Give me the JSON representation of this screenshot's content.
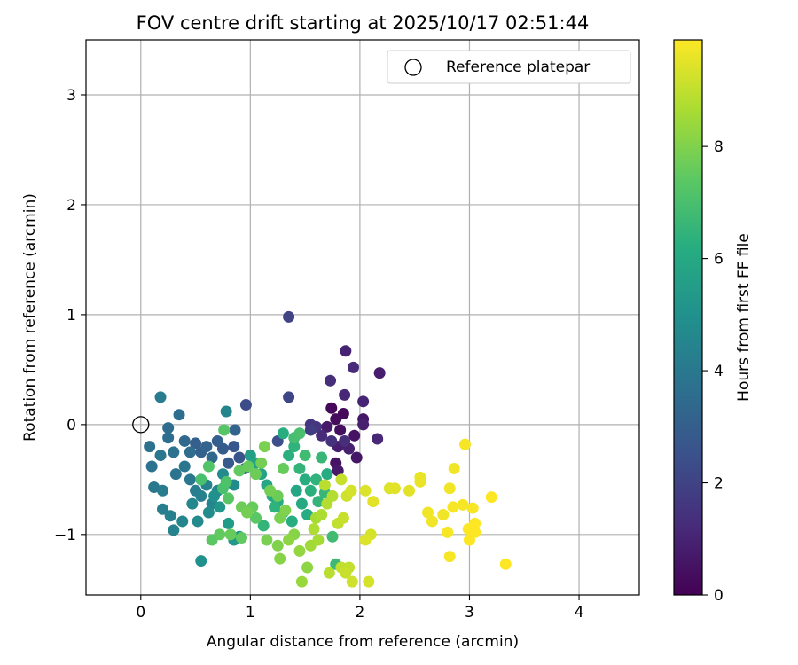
{
  "chart_data": {
    "type": "scatter",
    "title": "FOV centre drift starting at 2025/10/17 02:51:44",
    "xlabel": "Angular distance from reference (arcmin)",
    "ylabel": "Rotation from reference (arcmin)",
    "xlim": [
      -0.5,
      4.55
    ],
    "ylim": [
      -1.55,
      3.5
    ],
    "xticks": [
      0,
      1,
      2,
      3,
      4
    ],
    "xtick_labels": [
      "0",
      "1",
      "2",
      "3",
      "4"
    ],
    "yticks": [
      -1,
      0,
      1,
      2,
      3
    ],
    "ytick_labels": [
      "−1",
      "0",
      "1",
      "2",
      "3"
    ],
    "grid": true,
    "legend": {
      "label": "Reference platepar",
      "position": "top-right"
    },
    "reference_point": {
      "x": 0,
      "y": 0
    },
    "colorbar": {
      "label": "Hours from first FF file",
      "range": [
        0,
        9.9
      ],
      "ticks": [
        0,
        2,
        4,
        6,
        8
      ],
      "tick_labels": [
        "0",
        "2",
        "4",
        "6",
        "8"
      ],
      "colormap": "viridis"
    },
    "points": [
      {
        "x": 1.74,
        "y": 0.15,
        "h": 0.2
      },
      {
        "x": 1.78,
        "y": 0.05,
        "h": 0.3
      },
      {
        "x": 1.82,
        "y": -0.05,
        "h": 0.4
      },
      {
        "x": 1.85,
        "y": 0.1,
        "h": 0.2
      },
      {
        "x": 1.95,
        "y": -0.1,
        "h": 0.5
      },
      {
        "x": 2.03,
        "y": 0.05,
        "h": 0.6
      },
      {
        "x": 1.7,
        "y": -0.02,
        "h": 0.7
      },
      {
        "x": 1.8,
        "y": -0.2,
        "h": 0.8
      },
      {
        "x": 1.9,
        "y": -0.22,
        "h": 0.9
      },
      {
        "x": 1.78,
        "y": -0.35,
        "h": 0.5
      },
      {
        "x": 1.8,
        "y": -0.42,
        "h": 0.7
      },
      {
        "x": 1.97,
        "y": -0.3,
        "h": 0.6
      },
      {
        "x": 2.18,
        "y": 0.47,
        "h": 0.8
      },
      {
        "x": 1.87,
        "y": 0.67,
        "h": 1.0
      },
      {
        "x": 1.94,
        "y": 0.52,
        "h": 1.2
      },
      {
        "x": 1.73,
        "y": 0.4,
        "h": 1.3
      },
      {
        "x": 1.86,
        "y": 0.27,
        "h": 1.1
      },
      {
        "x": 2.03,
        "y": 0.21,
        "h": 1.0
      },
      {
        "x": 2.03,
        "y": 0.0,
        "h": 0.9
      },
      {
        "x": 2.16,
        "y": -0.13,
        "h": 1.1
      },
      {
        "x": 1.65,
        "y": -0.1,
        "h": 1.2
      },
      {
        "x": 1.74,
        "y": -0.15,
        "h": 1.4
      },
      {
        "x": 1.6,
        "y": -0.02,
        "h": 1.5
      },
      {
        "x": 1.86,
        "y": -0.15,
        "h": 1.3
      },
      {
        "x": 1.55,
        "y": 0.0,
        "h": 1.6
      },
      {
        "x": 1.35,
        "y": 0.98,
        "h": 2.0
      },
      {
        "x": 1.35,
        "y": 0.25,
        "h": 2.1
      },
      {
        "x": 0.96,
        "y": 0.18,
        "h": 2.3
      },
      {
        "x": 1.25,
        "y": -0.15,
        "h": 2.4
      },
      {
        "x": 1.55,
        "y": -0.05,
        "h": 1.8
      },
      {
        "x": 0.5,
        "y": -0.17,
        "h": 3.0
      },
      {
        "x": 0.55,
        "y": -0.25,
        "h": 3.1
      },
      {
        "x": 0.6,
        "y": -0.2,
        "h": 3.2
      },
      {
        "x": 0.65,
        "y": -0.3,
        "h": 3.3
      },
      {
        "x": 0.7,
        "y": -0.15,
        "h": 3.0
      },
      {
        "x": 0.75,
        "y": -0.22,
        "h": 2.9
      },
      {
        "x": 0.8,
        "y": -0.35,
        "h": 2.8
      },
      {
        "x": 0.85,
        "y": -0.2,
        "h": 2.7
      },
      {
        "x": 0.9,
        "y": -0.3,
        "h": 2.6
      },
      {
        "x": 0.95,
        "y": -0.4,
        "h": 2.9
      },
      {
        "x": 0.4,
        "y": -0.15,
        "h": 3.4
      },
      {
        "x": 0.45,
        "y": -0.25,
        "h": 3.5
      },
      {
        "x": 0.35,
        "y": 0.09,
        "h": 3.6
      },
      {
        "x": 0.18,
        "y": 0.25,
        "h": 4.1
      },
      {
        "x": 0.08,
        "y": -0.2,
        "h": 3.7
      },
      {
        "x": 0.1,
        "y": -0.38,
        "h": 3.8
      },
      {
        "x": 0.18,
        "y": -0.28,
        "h": 3.9
      },
      {
        "x": 0.25,
        "y": -0.03,
        "h": 3.5
      },
      {
        "x": 0.25,
        "y": -0.12,
        "h": 3.6
      },
      {
        "x": 0.3,
        "y": -0.25,
        "h": 3.7
      },
      {
        "x": 0.32,
        "y": -0.45,
        "h": 3.8
      },
      {
        "x": 0.4,
        "y": -0.38,
        "h": 3.9
      },
      {
        "x": 0.45,
        "y": -0.5,
        "h": 4.0
      },
      {
        "x": 0.5,
        "y": -0.6,
        "h": 4.2
      },
      {
        "x": 0.55,
        "y": -0.65,
        "h": 4.3
      },
      {
        "x": 0.6,
        "y": -0.55,
        "h": 4.4
      },
      {
        "x": 0.65,
        "y": -0.72,
        "h": 4.5
      },
      {
        "x": 0.7,
        "y": -0.6,
        "h": 4.6
      },
      {
        "x": 0.75,
        "y": -0.45,
        "h": 4.7
      },
      {
        "x": 0.85,
        "y": -0.55,
        "h": 4.8
      },
      {
        "x": 0.12,
        "y": -0.57,
        "h": 4.0
      },
      {
        "x": 0.2,
        "y": -0.6,
        "h": 4.1
      },
      {
        "x": 0.2,
        "y": -0.77,
        "h": 4.2
      },
      {
        "x": 0.27,
        "y": -0.83,
        "h": 4.3
      },
      {
        "x": 0.3,
        "y": -0.96,
        "h": 4.4
      },
      {
        "x": 0.38,
        "y": -0.88,
        "h": 4.5
      },
      {
        "x": 0.47,
        "y": -0.72,
        "h": 4.6
      },
      {
        "x": 0.52,
        "y": -0.88,
        "h": 4.7
      },
      {
        "x": 0.62,
        "y": -0.8,
        "h": 4.8
      },
      {
        "x": 0.78,
        "y": 0.12,
        "h": 4.5
      },
      {
        "x": 0.86,
        "y": -0.05,
        "h": 3.2
      },
      {
        "x": 0.55,
        "y": -1.24,
        "h": 5.0
      },
      {
        "x": 0.67,
        "y": -0.65,
        "h": 5.0
      },
      {
        "x": 0.72,
        "y": -0.75,
        "h": 5.2
      },
      {
        "x": 0.8,
        "y": -0.9,
        "h": 5.4
      },
      {
        "x": 0.85,
        "y": -1.05,
        "h": 5.3
      },
      {
        "x": 0.9,
        "y": -1.02,
        "h": 5.1
      },
      {
        "x": 1.0,
        "y": -0.28,
        "h": 5.6
      },
      {
        "x": 1.05,
        "y": -0.35,
        "h": 5.8
      },
      {
        "x": 1.1,
        "y": -0.45,
        "h": 5.7
      },
      {
        "x": 1.15,
        "y": -0.55,
        "h": 5.9
      },
      {
        "x": 1.2,
        "y": -0.65,
        "h": 6.0
      },
      {
        "x": 1.25,
        "y": -0.7,
        "h": 6.1
      },
      {
        "x": 1.3,
        "y": -0.08,
        "h": 6.2
      },
      {
        "x": 1.35,
        "y": -0.28,
        "h": 6.3
      },
      {
        "x": 1.4,
        "y": -0.2,
        "h": 6.4
      },
      {
        "x": 1.45,
        "y": -0.4,
        "h": 6.5
      },
      {
        "x": 1.5,
        "y": -0.5,
        "h": 6.2
      },
      {
        "x": 1.55,
        "y": -0.6,
        "h": 6.3
      },
      {
        "x": 1.6,
        "y": -0.5,
        "h": 6.4
      },
      {
        "x": 1.65,
        "y": -0.3,
        "h": 6.6
      },
      {
        "x": 1.7,
        "y": -0.45,
        "h": 6.1
      },
      {
        "x": 1.42,
        "y": -0.6,
        "h": 5.9
      },
      {
        "x": 1.47,
        "y": -0.72,
        "h": 6.0
      },
      {
        "x": 1.52,
        "y": -0.82,
        "h": 6.1
      },
      {
        "x": 1.38,
        "y": -0.88,
        "h": 6.2
      },
      {
        "x": 1.3,
        "y": -0.8,
        "h": 6.3
      },
      {
        "x": 1.22,
        "y": -0.75,
        "h": 6.4
      },
      {
        "x": 1.12,
        "y": -0.92,
        "h": 6.5
      },
      {
        "x": 1.62,
        "y": -0.7,
        "h": 6.5
      },
      {
        "x": 1.68,
        "y": -0.62,
        "h": 6.6
      },
      {
        "x": 1.75,
        "y": -1.02,
        "h": 6.8
      },
      {
        "x": 1.78,
        "y": -1.27,
        "h": 6.7
      },
      {
        "x": 1.4,
        "y": -0.12,
        "h": 6.9
      },
      {
        "x": 1.45,
        "y": -0.08,
        "h": 7.0
      },
      {
        "x": 1.5,
        "y": -0.28,
        "h": 6.8
      },
      {
        "x": 0.55,
        "y": -0.5,
        "h": 7.0
      },
      {
        "x": 0.62,
        "y": -0.38,
        "h": 7.2
      },
      {
        "x": 0.76,
        "y": -0.05,
        "h": 7.3
      },
      {
        "x": 0.78,
        "y": -0.52,
        "h": 7.1
      },
      {
        "x": 0.75,
        "y": -0.58,
        "h": 7.0
      },
      {
        "x": 0.8,
        "y": -0.67,
        "h": 7.3
      },
      {
        "x": 0.65,
        "y": -1.05,
        "h": 7.4
      },
      {
        "x": 0.72,
        "y": -1.0,
        "h": 7.5
      },
      {
        "x": 0.82,
        "y": -1.0,
        "h": 7.6
      },
      {
        "x": 0.92,
        "y": -1.03,
        "h": 7.5
      },
      {
        "x": 0.92,
        "y": -0.75,
        "h": 7.7
      },
      {
        "x": 0.97,
        "y": -0.8,
        "h": 7.8
      },
      {
        "x": 1.02,
        "y": -0.75,
        "h": 7.6
      },
      {
        "x": 1.05,
        "y": -0.85,
        "h": 7.4
      },
      {
        "x": 0.9,
        "y": -0.42,
        "h": 7.5
      },
      {
        "x": 0.98,
        "y": -0.38,
        "h": 7.6
      },
      {
        "x": 1.05,
        "y": -0.45,
        "h": 7.7
      },
      {
        "x": 1.1,
        "y": -0.35,
        "h": 7.8
      },
      {
        "x": 1.13,
        "y": -0.2,
        "h": 7.9
      },
      {
        "x": 1.18,
        "y": -0.6,
        "h": 7.8
      },
      {
        "x": 1.25,
        "y": -0.65,
        "h": 7.7
      },
      {
        "x": 1.3,
        "y": -0.4,
        "h": 7.6
      },
      {
        "x": 1.27,
        "y": -0.85,
        "h": 7.9
      },
      {
        "x": 1.32,
        "y": -0.78,
        "h": 8.0
      },
      {
        "x": 1.15,
        "y": -1.05,
        "h": 7.9
      },
      {
        "x": 1.25,
        "y": -1.1,
        "h": 8.0
      },
      {
        "x": 1.27,
        "y": -1.22,
        "h": 8.1
      },
      {
        "x": 1.35,
        "y": -1.05,
        "h": 8.2
      },
      {
        "x": 1.4,
        "y": -1.0,
        "h": 8.1
      },
      {
        "x": 1.45,
        "y": -1.15,
        "h": 8.3
      },
      {
        "x": 1.47,
        "y": -1.43,
        "h": 8.4
      },
      {
        "x": 1.52,
        "y": -1.3,
        "h": 8.2
      },
      {
        "x": 1.55,
        "y": -1.1,
        "h": 8.5
      },
      {
        "x": 1.6,
        "y": -0.85,
        "h": 8.6
      },
      {
        "x": 1.65,
        "y": -0.82,
        "h": 8.7
      },
      {
        "x": 1.7,
        "y": -0.72,
        "h": 8.8
      },
      {
        "x": 1.58,
        "y": -0.95,
        "h": 8.7
      },
      {
        "x": 1.62,
        "y": -1.05,
        "h": 8.6
      },
      {
        "x": 1.68,
        "y": -0.55,
        "h": 8.9
      },
      {
        "x": 1.75,
        "y": -0.65,
        "h": 8.8
      },
      {
        "x": 1.72,
        "y": -1.35,
        "h": 8.9
      },
      {
        "x": 1.83,
        "y": -1.3,
        "h": 9.0
      },
      {
        "x": 1.87,
        "y": -1.35,
        "h": 9.1
      },
      {
        "x": 1.9,
        "y": -1.3,
        "h": 9.0
      },
      {
        "x": 1.93,
        "y": -1.43,
        "h": 9.2
      },
      {
        "x": 2.08,
        "y": -1.43,
        "h": 9.3
      },
      {
        "x": 1.83,
        "y": -0.5,
        "h": 9.1
      },
      {
        "x": 1.88,
        "y": -0.65,
        "h": 9.2
      },
      {
        "x": 1.92,
        "y": -0.6,
        "h": 9.3
      },
      {
        "x": 1.8,
        "y": -0.9,
        "h": 9.0
      },
      {
        "x": 1.85,
        "y": -0.85,
        "h": 9.1
      },
      {
        "x": 2.05,
        "y": -1.05,
        "h": 9.4
      },
      {
        "x": 2.1,
        "y": -1.0,
        "h": 9.3
      },
      {
        "x": 2.05,
        "y": -0.6,
        "h": 9.4
      },
      {
        "x": 2.12,
        "y": -0.7,
        "h": 9.5
      },
      {
        "x": 2.27,
        "y": -0.58,
        "h": 9.4
      },
      {
        "x": 2.45,
        "y": -0.6,
        "h": 9.5
      },
      {
        "x": 2.55,
        "y": -0.48,
        "h": 9.6
      },
      {
        "x": 2.55,
        "y": -0.52,
        "h": 9.6
      },
      {
        "x": 2.62,
        "y": -0.8,
        "h": 9.7
      },
      {
        "x": 2.66,
        "y": -0.88,
        "h": 9.7
      },
      {
        "x": 2.76,
        "y": -0.82,
        "h": 9.7
      },
      {
        "x": 2.8,
        "y": -0.98,
        "h": 9.8
      },
      {
        "x": 2.82,
        "y": -1.2,
        "h": 9.8
      },
      {
        "x": 2.82,
        "y": -0.58,
        "h": 9.7
      },
      {
        "x": 2.85,
        "y": -0.75,
        "h": 9.8
      },
      {
        "x": 2.86,
        "y": -0.4,
        "h": 9.7
      },
      {
        "x": 2.94,
        "y": -0.73,
        "h": 9.8
      },
      {
        "x": 2.96,
        "y": -0.18,
        "h": 9.8
      },
      {
        "x": 2.99,
        "y": -0.95,
        "h": 9.9
      },
      {
        "x": 3.0,
        "y": -1.05,
        "h": 9.9
      },
      {
        "x": 3.03,
        "y": -0.76,
        "h": 9.8
      },
      {
        "x": 3.05,
        "y": -0.9,
        "h": 9.9
      },
      {
        "x": 3.05,
        "y": -0.98,
        "h": 9.9
      },
      {
        "x": 3.2,
        "y": -0.66,
        "h": 9.9
      },
      {
        "x": 3.33,
        "y": -1.27,
        "h": 9.9
      },
      {
        "x": 2.32,
        "y": -0.58,
        "h": 9.5
      }
    ]
  }
}
